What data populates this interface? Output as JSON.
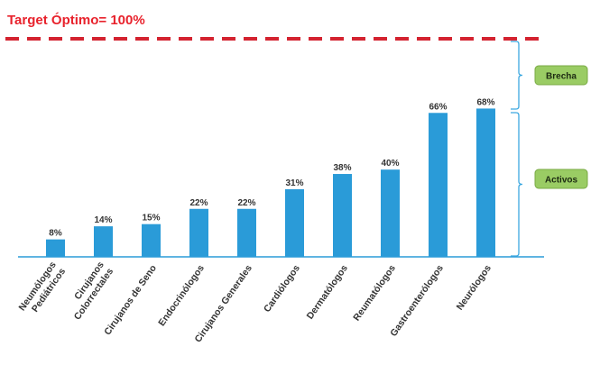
{
  "target": {
    "title": "Target Óptimo= 100%",
    "value": 100,
    "line_color": "#d42330"
  },
  "labels": {
    "gap": "Brecha",
    "active": "Activos"
  },
  "colors": {
    "bar": "#2a9bd8",
    "axis": "#2a9bd8",
    "bracket": "#3ca8e0",
    "tag_fill": "#9acc64",
    "tag_stroke": "#79aa45"
  },
  "chart_data": {
    "type": "bar",
    "categories": [
      "Neumólogos Pediátricos",
      "Cirujanos Colorrectales",
      "Cirujanos de Seno",
      "Endocrinólogos",
      "Cirujanos Generales",
      "Cardiólogos",
      "Dermatólogos",
      "Reumatólogos",
      "Gastroenterólogos",
      "Neurólogos"
    ],
    "values": [
      8,
      14,
      15,
      22,
      22,
      31,
      38,
      40,
      66,
      68
    ],
    "value_labels": [
      "8%",
      "14%",
      "15%",
      "22%",
      "22%",
      "31%",
      "38%",
      "40%",
      "66%",
      "68%"
    ],
    "ylim": [
      0,
      100
    ],
    "title": "Target Óptimo= 100%",
    "xlabel": "",
    "ylabel": ""
  }
}
